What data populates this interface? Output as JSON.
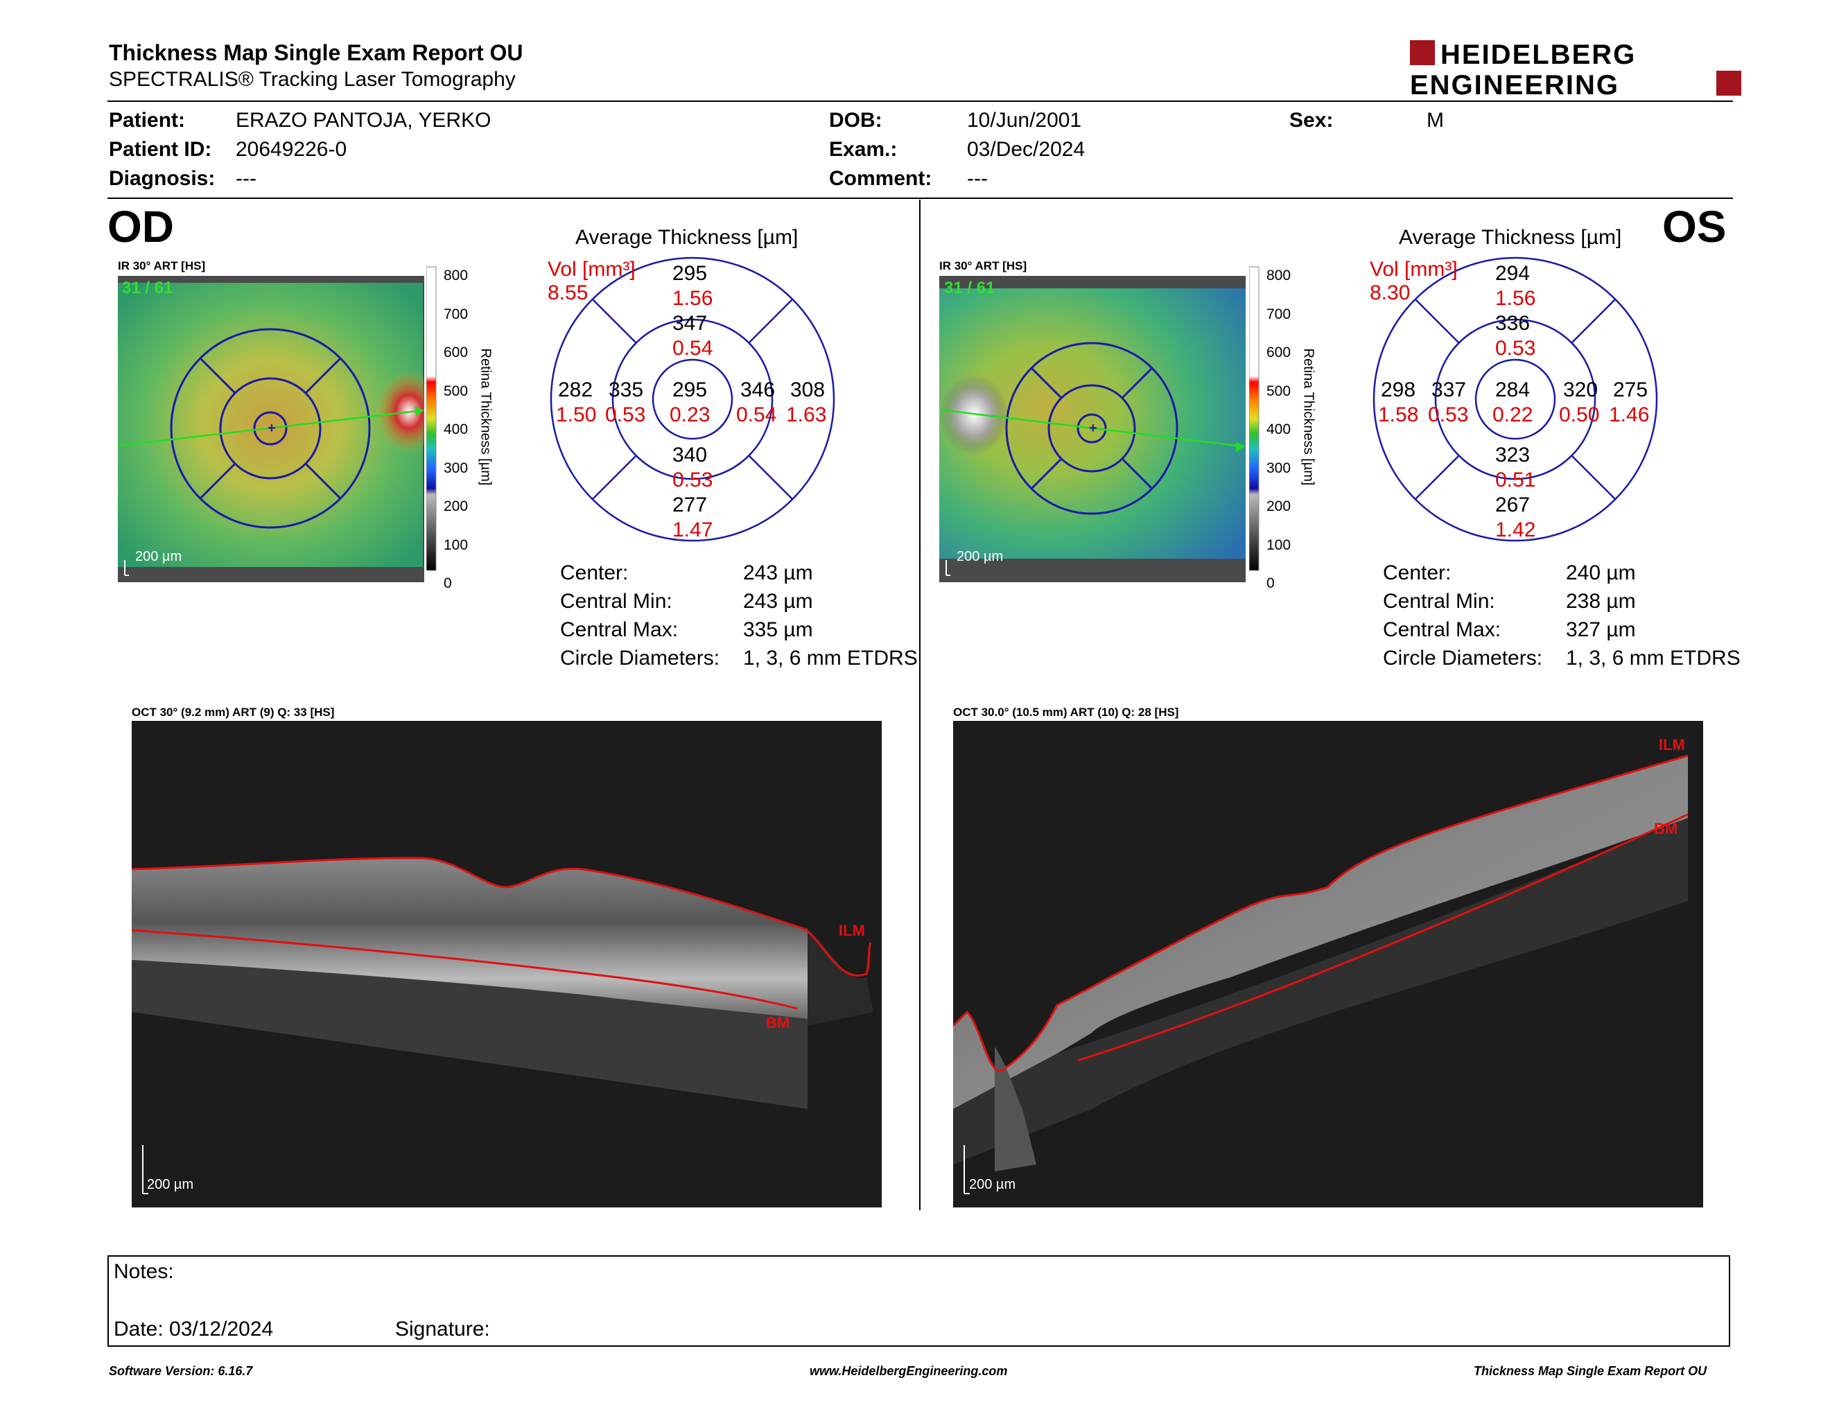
{
  "header": {
    "title": "Thickness Map Single Exam Report OU",
    "subtitle": "SPECTRALIS® Tracking Laser Tomography",
    "logo_line1": "HEIDELBERG",
    "logo_line2": "ENGINEERING"
  },
  "patient": {
    "patient_label": "Patient:",
    "patient_value": "ERAZO PANTOJA, YERKO",
    "id_label": "Patient ID:",
    "id_value": "20649226-0",
    "diagnosis_label": "Diagnosis:",
    "diagnosis_value": "---",
    "dob_label": "DOB:",
    "dob_value": "10/Jun/2001",
    "exam_label": "Exam.:",
    "exam_value": "03/Dec/2024",
    "comment_label": "Comment:",
    "comment_value": "---",
    "sex_label": "Sex:",
    "sex_value": "M"
  },
  "od": {
    "eye": "OD",
    "ir_caption": "IR 30° ART [HS]",
    "frames": "31 / 61",
    "scale": "200 µm",
    "avg_title": "Average Thickness [µm]",
    "vol_label": "Vol [mm³]",
    "vol_value": "8.55",
    "grid": {
      "outer_top": "295",
      "outer_top_vol": "1.56",
      "inner_top": "347",
      "inner_top_vol": "0.54",
      "outer_left": "282",
      "outer_left_vol": "1.50",
      "inner_left": "335",
      "inner_left_vol": "0.53",
      "center": "295",
      "center_vol": "0.23",
      "inner_right": "346",
      "inner_right_vol": "0.54",
      "outer_right": "308",
      "outer_right_vol": "1.63",
      "inner_bottom": "340",
      "inner_bottom_vol": "0.53",
      "outer_bottom": "277",
      "outer_bottom_vol": "1.47"
    },
    "stats": {
      "center_label": "Center:",
      "center_value": "243 µm",
      "min_label": "Central Min:",
      "min_value": "243 µm",
      "max_label": "Central Max:",
      "max_value": "335 µm",
      "diam_label": "Circle Diameters:",
      "diam_value": "1, 3, 6 mm ETDRS"
    },
    "oct_caption": "OCT 30° (9.2 mm) ART (9) Q: 33 [HS]",
    "oct_scale": "200 µm",
    "ilm": "ILM",
    "bm": "BM"
  },
  "os": {
    "eye": "OS",
    "ir_caption": "IR 30° ART [HS]",
    "frames": "31 / 61",
    "scale": "200 µm",
    "avg_title": "Average Thickness [µm]",
    "vol_label": "Vol [mm³]",
    "vol_value": "8.30",
    "grid": {
      "outer_top": "294",
      "outer_top_vol": "1.56",
      "inner_top": "336",
      "inner_top_vol": "0.53",
      "outer_left": "298",
      "outer_left_vol": "1.58",
      "inner_left": "337",
      "inner_left_vol": "0.53",
      "center": "284",
      "center_vol": "0.22",
      "inner_right": "320",
      "inner_right_vol": "0.50",
      "outer_right": "275",
      "outer_right_vol": "1.46",
      "inner_bottom": "323",
      "inner_bottom_vol": "0.51",
      "outer_bottom": "267",
      "outer_bottom_vol": "1.42"
    },
    "stats": {
      "center_label": "Center:",
      "center_value": "240 µm",
      "min_label": "Central Min:",
      "min_value": "238 µm",
      "max_label": "Central Max:",
      "max_value": "327 µm",
      "diam_label": "Circle Diameters:",
      "diam_value": "1, 3, 6 mm ETDRS"
    },
    "oct_caption": "OCT 30.0° (10.5 mm) ART (10) Q: 28 [HS]",
    "oct_scale": "200 µm",
    "ilm": "ILM",
    "bm": "BM"
  },
  "colorbar": {
    "ticks": [
      "800",
      "700",
      "600",
      "500",
      "400",
      "300",
      "200",
      "100",
      "0"
    ],
    "label": "Retina Thickness [µm]"
  },
  "notes": {
    "notes_label": "Notes:",
    "date_label": "Date: 03/12/2024",
    "signature_label": "Signature:"
  },
  "footer": {
    "software": "Software Version: 6.16.7",
    "url": "www.HeidelbergEngineering.com",
    "report": "Thickness Map Single Exam Report OU"
  },
  "colors": {
    "grid_blue": "#1a1aa8",
    "volume_red": "#dd0000",
    "logo_red": "#a3141e",
    "frames_green": "#33dd33",
    "seg_red": "#e01010"
  }
}
